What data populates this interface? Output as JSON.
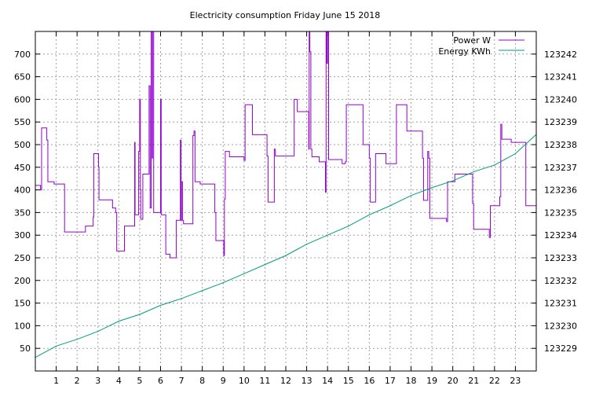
{
  "chart_data": {
    "type": "line",
    "title": "Electricity consumption Friday June 15 2018",
    "xlabel": "",
    "ylabel": "",
    "y2label": "",
    "xlim": [
      0,
      24
    ],
    "ylim": [
      0,
      750
    ],
    "y2lim": [
      123228,
      123243
    ],
    "grid": true,
    "legend_position": "top-right",
    "xticks": [
      1,
      2,
      3,
      4,
      5,
      6,
      7,
      8,
      9,
      10,
      11,
      12,
      13,
      14,
      15,
      16,
      17,
      18,
      19,
      20,
      21,
      22,
      23
    ],
    "yticks": [
      50,
      100,
      150,
      200,
      250,
      300,
      350,
      400,
      450,
      500,
      550,
      600,
      650,
      700
    ],
    "y2ticks": [
      123229,
      123230,
      123231,
      123232,
      123233,
      123234,
      123235,
      123236,
      123237,
      123238,
      123239,
      123240,
      123241,
      123242
    ],
    "colors": {
      "power": "#9400d3",
      "energy": "#009e73",
      "grid": "#a0a0a0"
    },
    "series": [
      {
        "name": "Power W",
        "axis": "left",
        "style": "steps",
        "x": [
          0,
          0.25,
          0.3,
          0.55,
          0.6,
          0.9,
          1.4,
          2.4,
          2.77,
          2.8,
          3.03,
          3.05,
          3.7,
          3.85,
          3.9,
          4.27,
          4.76,
          4.78,
          4.8,
          4.95,
          5.0,
          5.03,
          5.05,
          5.1,
          5.15,
          5.45,
          5.5,
          5.55,
          5.6,
          5.62,
          5.65,
          5.67,
          6.0,
          6.03,
          6.05,
          6.25,
          6.45,
          6.75,
          6.95,
          6.98,
          7.0,
          7.05,
          7.1,
          7.55,
          7.6,
          7.65,
          7.9,
          8.6,
          8.65,
          9.03,
          9.06,
          9.1,
          9.3,
          10.0,
          10.05,
          10.4,
          11.1,
          11.15,
          11.45,
          11.5,
          12.4,
          12.55,
          13.1,
          13.12,
          13.15,
          13.2,
          13.25,
          13.6,
          13.9,
          13.93,
          13.96,
          14.0,
          14.05,
          14.7,
          14.85,
          14.9,
          15.7,
          16.0,
          16.05,
          16.3,
          16.8,
          17.3,
          17.8,
          18.55,
          18.6,
          18.8,
          18.85,
          18.9,
          19.7,
          19.75,
          20.1,
          20.95,
          21.0,
          21.75,
          21.8,
          22.25,
          22.3,
          22.35,
          22.8,
          23.5,
          24
        ],
        "y": [
          410,
          400,
          537,
          510,
          418,
          413,
          307,
          320,
          340,
          480,
          450,
          378,
          360,
          350,
          265,
          320,
          505,
          345,
          345,
          485,
          600,
          400,
          335,
          335,
          435,
          630,
          360,
          750,
          470,
          750,
          750,
          350,
          600,
          345,
          345,
          258,
          250,
          333,
          510,
          333,
          418,
          333,
          325,
          520,
          530,
          418,
          413,
          350,
          288,
          255,
          380,
          485,
          473,
          465,
          588,
          522,
          475,
          373,
          490,
          475,
          600,
          573,
          490,
          750,
          705,
          490,
          473,
          462,
          395,
          750,
          680,
          750,
          467,
          458,
          462,
          588,
          500,
          470,
          373,
          480,
          458,
          588,
          530,
          470,
          377,
          485,
          470,
          337,
          330,
          418,
          435,
          370,
          313,
          295,
          365,
          385,
          545,
          512,
          505,
          365,
          365
        ]
      },
      {
        "name": "Energy KWh",
        "axis": "right",
        "style": "lines",
        "x": [
          0,
          1,
          2,
          3,
          4,
          5,
          6,
          7,
          8,
          9,
          10,
          11,
          12,
          13,
          14,
          15,
          16,
          17,
          18,
          19,
          20,
          21,
          22,
          23,
          24
        ],
        "y": [
          123228.6,
          123229.1,
          123229.4,
          123229.75,
          123230.2,
          123230.5,
          123230.9,
          123231.2,
          123231.55,
          123231.9,
          123232.3,
          123232.7,
          123233.1,
          123233.6,
          123234.0,
          123234.4,
          123234.9,
          123235.3,
          123235.75,
          123236.1,
          123236.4,
          123236.8,
          123237.1,
          123237.6,
          123238.45
        ]
      }
    ]
  }
}
